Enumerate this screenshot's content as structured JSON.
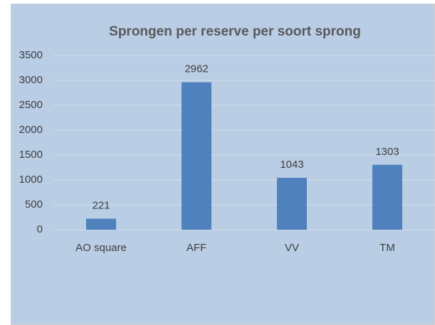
{
  "chart_data": {
    "type": "bar",
    "title": "Sprongen per reserve per soort sprong",
    "categories": [
      "AO square",
      "AFF",
      "VV",
      "TM"
    ],
    "values": [
      221,
      2962,
      1043,
      1303
    ],
    "color": "#4f81bd",
    "ylim": [
      0,
      3500
    ],
    "yticks": [
      0,
      500,
      1000,
      1500,
      2000,
      2500,
      3000,
      3500
    ],
    "grid": true
  }
}
